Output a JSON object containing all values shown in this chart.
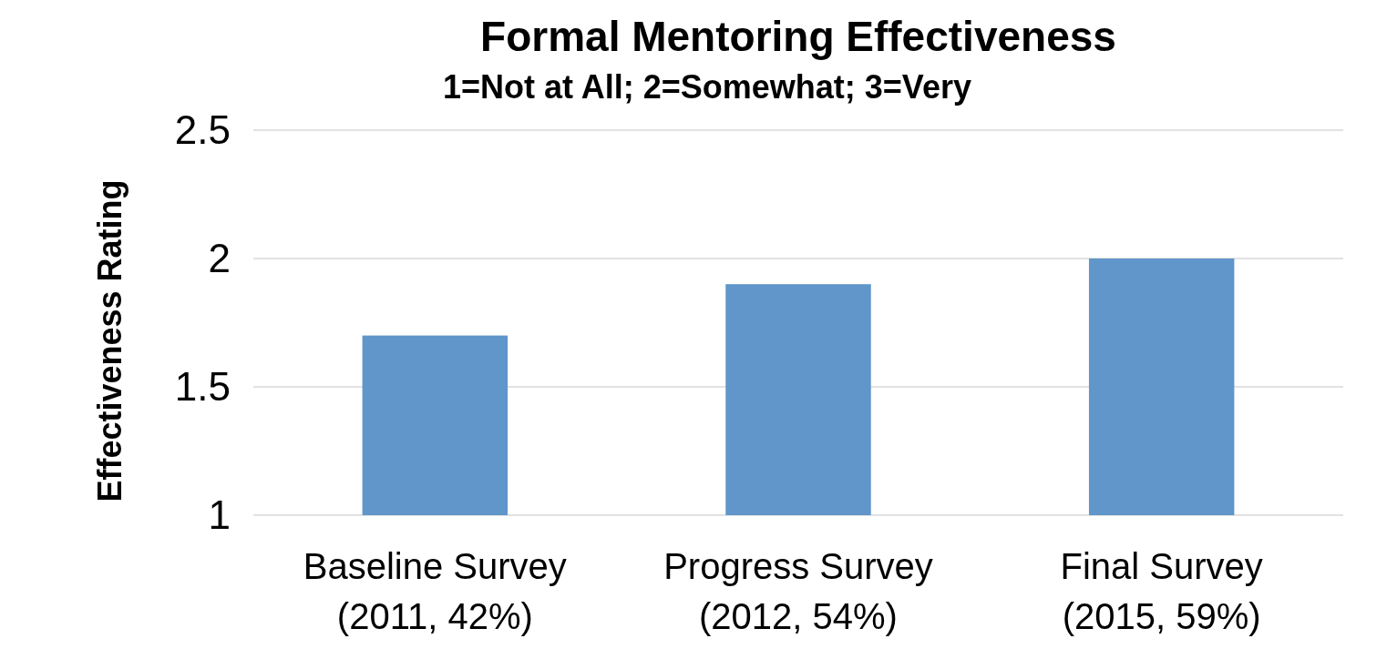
{
  "chart_data": {
    "type": "bar",
    "title": "Formal Mentoring Effectiveness",
    "subtitle": "1=Not at All; 2=Somewhat; 3=Very",
    "ylabel": "Effectiveness Rating",
    "categories": [
      "Baseline Survey (2011, 42%)",
      "Progress Survey (2012, 54%)",
      "Final Survey (2015, 59%)"
    ],
    "values": [
      1.7,
      1.9,
      2.0
    ],
    "color": "#6096c9",
    "ylim": [
      1,
      2.5
    ],
    "yticks": [
      1,
      1.5,
      2,
      2.5
    ],
    "grid": "y"
  }
}
